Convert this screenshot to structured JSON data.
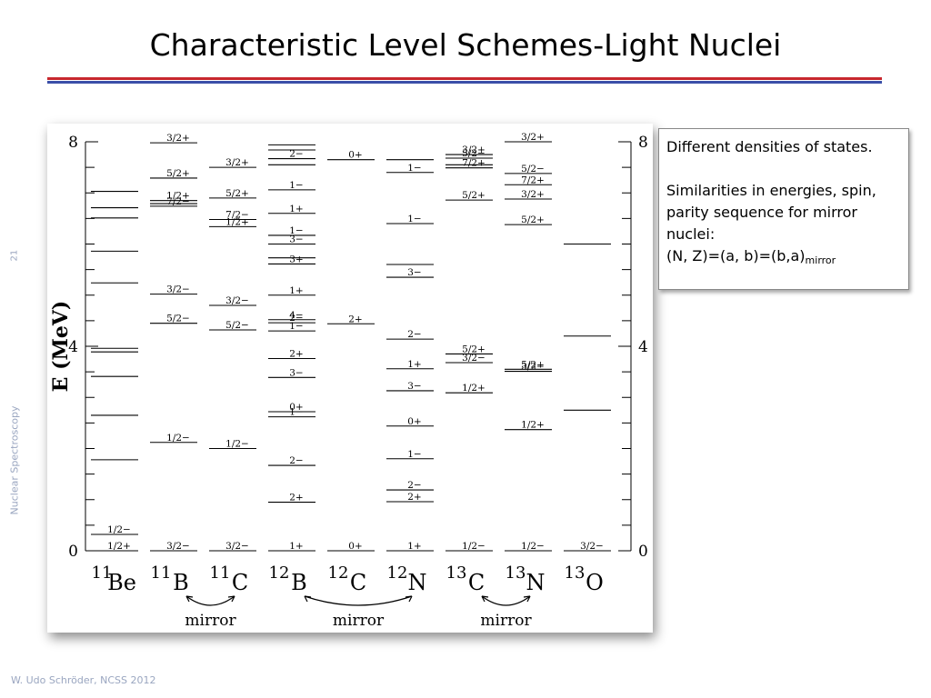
{
  "slide": {
    "title": "Characteristic Level Schemes-Light Nuclei",
    "slide_number": "21",
    "side_label": "Nuclear Spectroscopy",
    "footer": "W. Udo Schröder, NCSS 2012"
  },
  "note": {
    "line1": "Different densities of states.",
    "line2": "Similarities in energies, spin, parity sequence for mirror nuclei:",
    "line3_main": "(N, Z)=(a, b)=(b,a)",
    "line3_sub": "mirror"
  },
  "figure": {
    "y_axis_label": "E (MeV)",
    "energy_range": [
      0,
      8
    ],
    "left_ticks": [
      "0",
      "4",
      "8"
    ],
    "right_ticks": [
      "0",
      "4",
      "8"
    ],
    "mirror_label": "mirror",
    "nuclei": [
      {
        "mass": "11",
        "symbol": "Be",
        "levels": [
          {
            "e": 0.0,
            "label": "1/2+"
          },
          {
            "e": 0.32,
            "label": "1/2−"
          },
          {
            "e": 1.78,
            "label": ""
          },
          {
            "e": 2.65,
            "label": ""
          },
          {
            "e": 3.41,
            "label": ""
          },
          {
            "e": 3.89,
            "label": ""
          },
          {
            "e": 3.96,
            "label": ""
          },
          {
            "e": 5.24,
            "label": ""
          },
          {
            "e": 5.86,
            "label": ""
          },
          {
            "e": 6.51,
            "label": ""
          },
          {
            "e": 6.71,
            "label": ""
          },
          {
            "e": 7.03,
            "label": ""
          }
        ]
      },
      {
        "mass": "11",
        "symbol": "B",
        "levels": [
          {
            "e": 0.0,
            "label": "3/2−"
          },
          {
            "e": 2.12,
            "label": "1/2−"
          },
          {
            "e": 4.45,
            "label": "5/2−"
          },
          {
            "e": 5.02,
            "label": "3/2−"
          },
          {
            "e": 6.74,
            "label": "7/2−"
          },
          {
            "e": 6.79,
            "label": ""
          },
          {
            "e": 7.29,
            "label": "5/2+"
          },
          {
            "e": 6.85,
            "label": "1/2+"
          },
          {
            "e": 7.98,
            "label": "3/2+"
          }
        ]
      },
      {
        "mass": "11",
        "symbol": "C",
        "levels": [
          {
            "e": 0.0,
            "label": "3/2−"
          },
          {
            "e": 2.0,
            "label": "1/2−"
          },
          {
            "e": 4.32,
            "label": "5/2−"
          },
          {
            "e": 4.8,
            "label": "3/2−"
          },
          {
            "e": 6.34,
            "label": "1/2+"
          },
          {
            "e": 6.48,
            "label": "7/2−"
          },
          {
            "e": 6.9,
            "label": "5/2+"
          },
          {
            "e": 7.5,
            "label": "3/2+"
          }
        ]
      },
      {
        "mass": "12",
        "symbol": "B",
        "levels": [
          {
            "e": 0.0,
            "label": "1+"
          },
          {
            "e": 0.95,
            "label": "2+"
          },
          {
            "e": 1.67,
            "label": "2−"
          },
          {
            "e": 2.62,
            "label": "1−"
          },
          {
            "e": 2.72,
            "label": "0+"
          },
          {
            "e": 3.39,
            "label": "3−"
          },
          {
            "e": 3.76,
            "label": "2+"
          },
          {
            "e": 4.3,
            "label": "1−"
          },
          {
            "e": 4.46,
            "label": "2−"
          },
          {
            "e": 4.52,
            "label": "4−"
          },
          {
            "e": 5.0,
            "label": "1+"
          },
          {
            "e": 5.61,
            "label": "3+"
          },
          {
            "e": 5.73,
            "label": ""
          },
          {
            "e": 6.0,
            "label": "3−"
          },
          {
            "e": 6.17,
            "label": "1−"
          },
          {
            "e": 6.6,
            "label": "1+"
          },
          {
            "e": 7.06,
            "label": "1−"
          },
          {
            "e": 7.55,
            "label": ""
          },
          {
            "e": 7.67,
            "label": "2−"
          },
          {
            "e": 7.84,
            "label": ""
          },
          {
            "e": 7.94,
            "label": ""
          }
        ]
      },
      {
        "mass": "12",
        "symbol": "C",
        "levels": [
          {
            "e": 0.0,
            "label": "0+"
          },
          {
            "e": 4.44,
            "label": "2+"
          },
          {
            "e": 7.65,
            "label": "0+"
          }
        ]
      },
      {
        "mass": "12",
        "symbol": "N",
        "levels": [
          {
            "e": 0.0,
            "label": "1+"
          },
          {
            "e": 0.96,
            "label": "2+"
          },
          {
            "e": 1.19,
            "label": "2−"
          },
          {
            "e": 1.8,
            "label": "1−"
          },
          {
            "e": 2.44,
            "label": "0+"
          },
          {
            "e": 3.13,
            "label": "3−"
          },
          {
            "e": 3.56,
            "label": "1+"
          },
          {
            "e": 4.14,
            "label": "2−"
          },
          {
            "e": 5.35,
            "label": "3−"
          },
          {
            "e": 5.6,
            "label": ""
          },
          {
            "e": 6.4,
            "label": "1−"
          },
          {
            "e": 7.4,
            "label": "1−"
          },
          {
            "e": 7.65,
            "label": ""
          }
        ]
      },
      {
        "mass": "13",
        "symbol": "C",
        "levels": [
          {
            "e": 0.0,
            "label": "1/2−"
          },
          {
            "e": 3.09,
            "label": "1/2+"
          },
          {
            "e": 3.68,
            "label": "3/2−"
          },
          {
            "e": 3.85,
            "label": "5/2+"
          },
          {
            "e": 6.86,
            "label": "5/2+"
          },
          {
            "e": 7.49,
            "label": "7/2+"
          },
          {
            "e": 7.55,
            "label": ""
          },
          {
            "e": 7.68,
            "label": "5/2−"
          },
          {
            "e": 7.75,
            "label": "3/2+"
          }
        ]
      },
      {
        "mass": "13",
        "symbol": "N",
        "levels": [
          {
            "e": 0.0,
            "label": "1/2−"
          },
          {
            "e": 2.37,
            "label": "1/2+"
          },
          {
            "e": 3.51,
            "label": "3/2−"
          },
          {
            "e": 3.55,
            "label": "5/2+"
          },
          {
            "e": 6.38,
            "label": "5/2+"
          },
          {
            "e": 6.88,
            "label": "3/2+"
          },
          {
            "e": 7.16,
            "label": "7/2+"
          },
          {
            "e": 7.38,
            "label": "5/2−"
          },
          {
            "e": 8.0,
            "label": "3/2+"
          }
        ]
      },
      {
        "mass": "13",
        "symbol": "O",
        "levels": [
          {
            "e": 0.0,
            "label": "3/2−"
          },
          {
            "e": 2.75,
            "label": ""
          },
          {
            "e": 4.2,
            "label": ""
          },
          {
            "e": 6.0,
            "label": ""
          }
        ]
      }
    ]
  }
}
